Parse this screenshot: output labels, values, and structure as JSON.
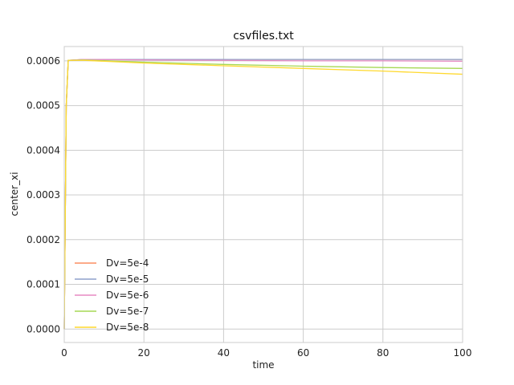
{
  "chart_data": {
    "type": "line",
    "title": "csvfiles.txt",
    "xlabel": "time",
    "ylabel": "center_xi",
    "xlim": [
      0,
      100
    ],
    "ylim": [
      -3e-05,
      0.000632
    ],
    "xticks": [
      0,
      20,
      40,
      60,
      80,
      100
    ],
    "xtick_labels": [
      "0",
      "20",
      "40",
      "60",
      "80",
      "100"
    ],
    "yticks": [
      0,
      0.0001,
      0.0002,
      0.0003,
      0.0004,
      0.0005,
      0.0006
    ],
    "ytick_labels": [
      "0.0000",
      "0.0001",
      "0.0002",
      "0.0003",
      "0.0004",
      "0.0005",
      "0.0006"
    ],
    "grid": true,
    "legend_position": "lower-left",
    "series": [
      {
        "name": "Dv=5e-4",
        "color": "#fc8d62",
        "x": [
          0,
          0.5,
          1,
          5,
          20,
          40,
          60,
          80,
          100
        ],
        "y": [
          0,
          0.0005,
          0.000601,
          0.000603,
          0.000603,
          0.000603,
          0.000603,
          0.000603,
          0.000603
        ]
      },
      {
        "name": "Dv=5e-5",
        "color": "#8da0cb",
        "x": [
          0,
          0.5,
          1,
          5,
          20,
          40,
          60,
          80,
          100
        ],
        "y": [
          0,
          0.0005,
          0.000601,
          0.000603,
          0.000603,
          0.000603,
          0.000603,
          0.000603,
          0.000603
        ]
      },
      {
        "name": "Dv=5e-6",
        "color": "#e78ac3",
        "x": [
          0,
          0.5,
          1,
          5,
          20,
          40,
          60,
          80,
          100
        ],
        "y": [
          0,
          0.0005,
          0.000601,
          0.000603,
          0.000602,
          0.000601,
          0.0006,
          0.0006,
          0.000599
        ]
      },
      {
        "name": "Dv=5e-7",
        "color": "#a6d854",
        "x": [
          0,
          0.5,
          1,
          5,
          20,
          40,
          60,
          80,
          100
        ],
        "y": [
          0,
          0.0005,
          0.000601,
          0.000602,
          0.000597,
          0.000592,
          0.000588,
          0.000585,
          0.000583
        ]
      },
      {
        "name": "Dv=5e-8",
        "color": "#ffd92f",
        "x": [
          0,
          0.5,
          1,
          5,
          20,
          40,
          60,
          80,
          100
        ],
        "y": [
          0,
          0.0005,
          0.000601,
          0.000601,
          0.000595,
          0.000589,
          0.000583,
          0.000577,
          0.00057
        ]
      }
    ]
  }
}
